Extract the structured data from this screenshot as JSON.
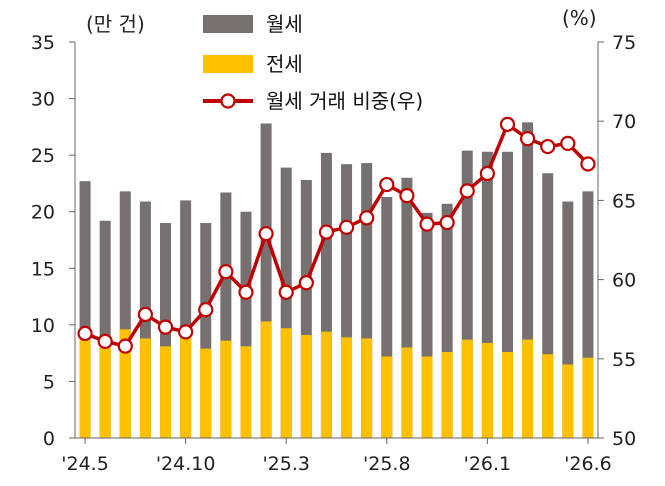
{
  "chart_data": {
    "type": "bar",
    "left_unit": "(만 건)",
    "right_unit": "(%)",
    "ylim_left": [
      0,
      35
    ],
    "yticks_left": [
      "0",
      "5",
      "10",
      "15",
      "20",
      "25",
      "30",
      "35"
    ],
    "ylim_right": [
      50,
      75
    ],
    "yticks_right": [
      "50",
      "55",
      "60",
      "65",
      "70",
      "75"
    ],
    "x_tick_labels": [
      {
        "index": 0,
        "label": "'24.5"
      },
      {
        "index": 5,
        "label": "'24.10"
      },
      {
        "index": 10,
        "label": "'25.3"
      },
      {
        "index": 15,
        "label": "'25.8"
      },
      {
        "index": 20,
        "label": "'26.1"
      },
      {
        "index": 25,
        "label": "'26.6"
      }
    ],
    "legend": [
      "월세",
      "전세",
      "월세 거래 비중(우)"
    ],
    "colors": {
      "monthly": "#777070",
      "jeonse": "#FFC000",
      "share": "#C00000"
    },
    "series": [
      {
        "name": "월세",
        "type": "bar",
        "axis": "left",
        "values": [
          22.7,
          19.2,
          21.8,
          20.9,
          19.0,
          21.0,
          19.0,
          21.7,
          20.0,
          27.8,
          23.9,
          22.8,
          25.2,
          24.2,
          24.3,
          21.3,
          23.0,
          19.9,
          20.7,
          25.4,
          25.3,
          25.3,
          27.9,
          23.4,
          20.9,
          21.8
        ]
      },
      {
        "name": "전세",
        "type": "bar",
        "axis": "left",
        "values": [
          9.7,
          9.0,
          9.6,
          8.8,
          8.1,
          8.9,
          7.9,
          8.6,
          8.1,
          10.3,
          9.7,
          9.1,
          9.4,
          8.9,
          8.8,
          7.2,
          8.0,
          7.2,
          7.6,
          8.7,
          8.4,
          7.6,
          8.7,
          7.4,
          6.5,
          7.1
        ]
      },
      {
        "name": "월세 거래 비중(우)",
        "type": "line",
        "axis": "right",
        "values": [
          56.6,
          56.1,
          55.8,
          57.8,
          57.0,
          56.7,
          58.1,
          60.5,
          59.2,
          62.9,
          59.2,
          59.8,
          63.0,
          63.3,
          63.9,
          66.0,
          65.3,
          63.5,
          63.6,
          65.6,
          66.7,
          69.8,
          68.9,
          68.4,
          68.6,
          67.3
        ]
      }
    ]
  }
}
